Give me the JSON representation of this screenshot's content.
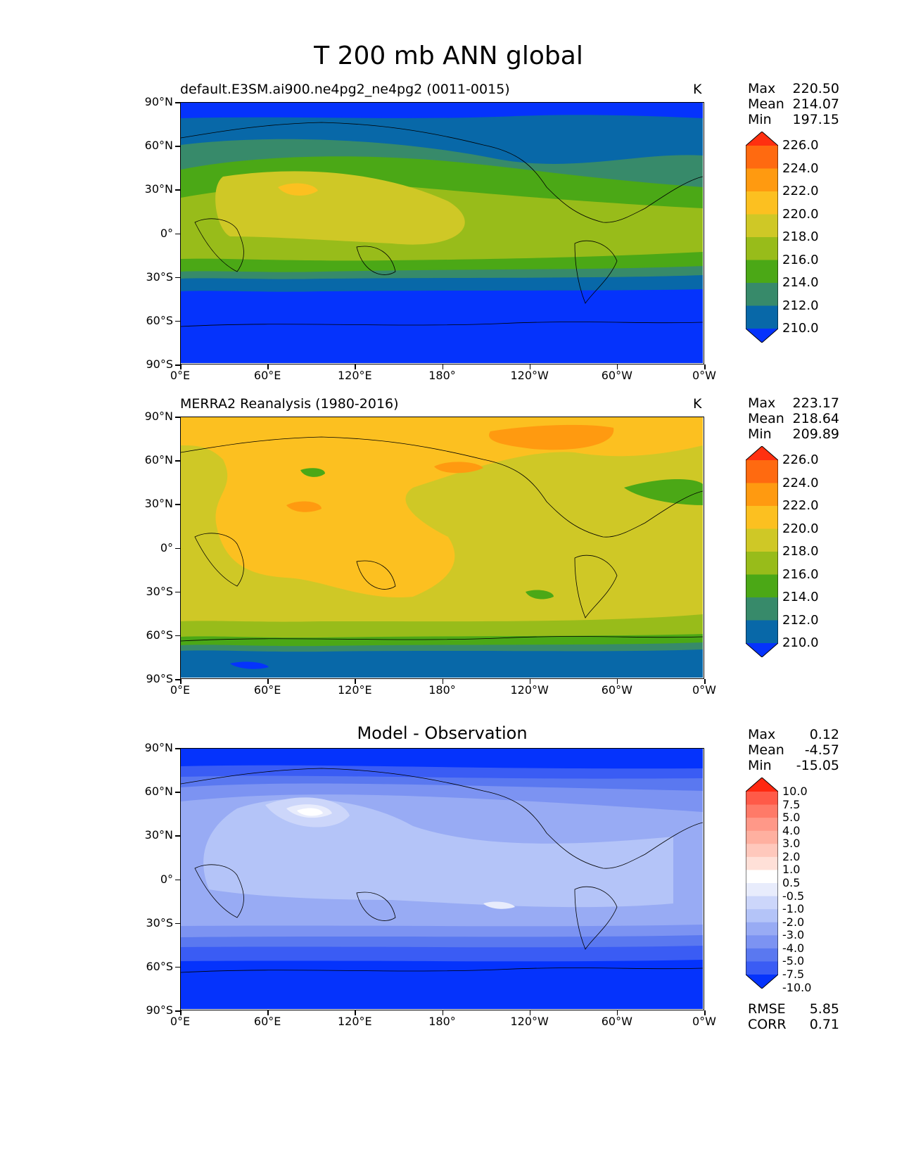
{
  "figure": {
    "title": "T 200 mb ANN global"
  },
  "axes": {
    "lat_ticks": [
      "90°N",
      "60°N",
      "30°N",
      "0°",
      "30°S",
      "60°S",
      "90°S"
    ],
    "lon_ticks": [
      "0°E",
      "60°E",
      "120°E",
      "180°",
      "120°W",
      "60°W",
      "0°W"
    ]
  },
  "panels": [
    {
      "title": "default.E3SM.ai900.ne4pg2_ne4pg2 (0011-0015)",
      "units": "K",
      "stats": {
        "max_label": "Max",
        "max": "220.50",
        "mean_label": "Mean",
        "mean": "214.07",
        "min_label": "Min",
        "min": "197.15"
      },
      "colorbar_labels": [
        "226.0",
        "224.0",
        "222.0",
        "220.0",
        "218.0",
        "216.0",
        "214.0",
        "212.0",
        "210.0"
      ]
    },
    {
      "title": "MERRA2 Reanalysis (1980-2016)",
      "units": "K",
      "stats": {
        "max_label": "Max",
        "max": "223.17",
        "mean_label": "Mean",
        "mean": "218.64",
        "min_label": "Min",
        "min": "209.89"
      },
      "colorbar_labels": [
        "226.0",
        "224.0",
        "222.0",
        "220.0",
        "218.0",
        "216.0",
        "214.0",
        "212.0",
        "210.0"
      ]
    },
    {
      "title": "Model - Observation",
      "stats": {
        "max_label": "Max",
        "max": "0.12",
        "mean_label": "Mean",
        "mean": "-4.57",
        "min_label": "Min",
        "min": "-15.05"
      },
      "colorbar_labels": [
        "10.0",
        "7.5",
        "5.0",
        "4.0",
        "3.0",
        "2.0",
        "1.0",
        "0.5",
        "-0.5",
        "-1.0",
        "-2.0",
        "-3.0",
        "-4.0",
        "-5.0",
        "-7.5",
        "-10.0"
      ],
      "metrics": {
        "rmse_label": "RMSE",
        "rmse": "5.85",
        "corr_label": "CORR",
        "corr": "0.71"
      }
    }
  ],
  "colors": {
    "abs_levels": [
      "#ff3010",
      "#ff6a10",
      "#ff9a10",
      "#fcc020",
      "#cfc826",
      "#98bc1a",
      "#4ba816",
      "#378a6a",
      "#0868a8",
      "#0533fc"
    ],
    "diff_levels": [
      "#ff2810",
      "#ff5a48",
      "#ff7a68",
      "#ff9888",
      "#ffb0a0",
      "#ffc8bc",
      "#ffe0d8",
      "#ffffff",
      "#e8ecfc",
      "#ccd6fa",
      "#b4c4f8",
      "#98abf4",
      "#7c93f2",
      "#5a78f0",
      "#3a5cf4",
      "#0533fc"
    ]
  }
}
